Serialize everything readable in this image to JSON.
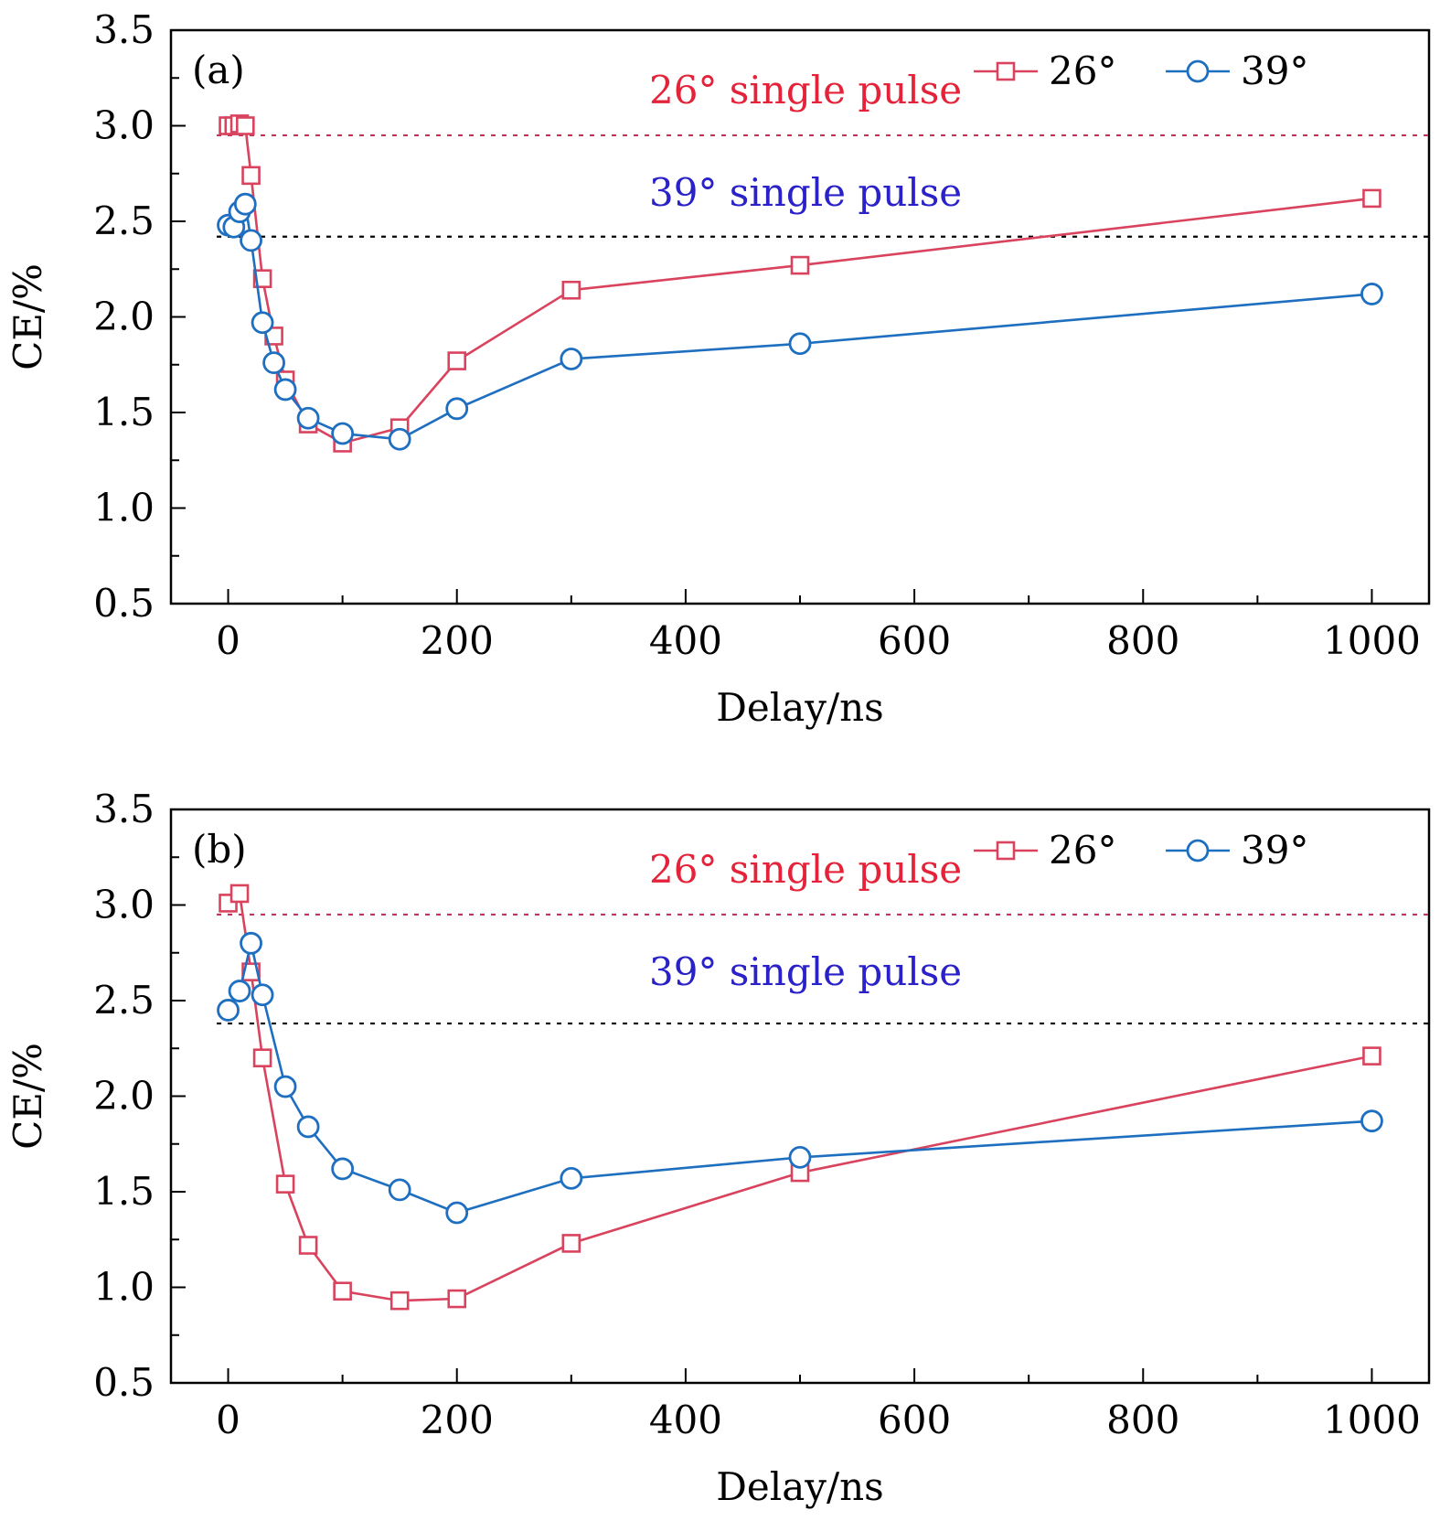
{
  "colors": {
    "series_26": "#d9435e",
    "series_39": "#1f6fc0",
    "ann_26": "#e4233a",
    "ann_39": "#2a22c8",
    "ref_26_line": "#c8305a",
    "ref_39_line": "#000000"
  },
  "chart_data": [
    {
      "type": "line",
      "panel_label": "(a)",
      "xlabel": "Delay/ns",
      "ylabel": "CE/%",
      "xlim": [
        -50,
        1050
      ],
      "ylim": [
        0.5,
        3.5
      ],
      "x_ticks": [
        0,
        200,
        400,
        600,
        800,
        1000
      ],
      "y_ticks": [
        0.5,
        1.0,
        1.5,
        2.0,
        2.5,
        3.0,
        3.5
      ],
      "legend_position": "top-right",
      "grid": false,
      "series": [
        {
          "name": "26°",
          "marker": "square",
          "x": [
            0,
            5,
            10,
            15,
            20,
            30,
            40,
            50,
            70,
            100,
            150,
            200,
            300,
            500,
            1000
          ],
          "y": [
            3.0,
            3.0,
            3.01,
            3.0,
            2.74,
            2.2,
            1.9,
            1.67,
            1.44,
            1.34,
            1.42,
            1.77,
            2.14,
            2.27,
            2.62
          ]
        },
        {
          "name": "39°",
          "marker": "circle",
          "x": [
            0,
            5,
            10,
            15,
            20,
            30,
            40,
            50,
            70,
            100,
            150,
            200,
            300,
            500,
            1000
          ],
          "y": [
            2.48,
            2.47,
            2.55,
            2.59,
            2.4,
            1.97,
            1.76,
            1.62,
            1.47,
            1.39,
            1.36,
            1.52,
            1.78,
            1.86,
            2.12
          ]
        }
      ],
      "reference_lines": [
        {
          "label": "26° single pulse",
          "y": 2.95
        },
        {
          "label": "39° single pulse",
          "y": 2.42
        }
      ]
    },
    {
      "type": "line",
      "panel_label": "(b)",
      "xlabel": "Delay/ns",
      "ylabel": "CE/%",
      "xlim": [
        -50,
        1050
      ],
      "ylim": [
        0.5,
        3.5
      ],
      "x_ticks": [
        0,
        200,
        400,
        600,
        800,
        1000
      ],
      "y_ticks": [
        0.5,
        1.0,
        1.5,
        2.0,
        2.5,
        3.0,
        3.5
      ],
      "legend_position": "top-right",
      "grid": false,
      "series": [
        {
          "name": "26°",
          "marker": "square",
          "x": [
            0,
            10,
            20,
            30,
            50,
            70,
            100,
            150,
            200,
            300,
            500,
            1000
          ],
          "y": [
            3.01,
            3.06,
            2.65,
            2.2,
            1.54,
            1.22,
            0.98,
            0.93,
            0.94,
            1.23,
            1.6,
            2.21
          ]
        },
        {
          "name": "39°",
          "marker": "circle",
          "x": [
            0,
            10,
            20,
            30,
            50,
            70,
            100,
            150,
            200,
            300,
            500,
            1000
          ],
          "y": [
            2.45,
            2.55,
            2.8,
            2.53,
            2.05,
            1.84,
            1.62,
            1.51,
            1.39,
            1.57,
            1.68,
            1.87
          ]
        }
      ],
      "reference_lines": [
        {
          "label": "26° single pulse",
          "y": 2.95
        },
        {
          "label": "39° single pulse",
          "y": 2.38
        }
      ]
    }
  ]
}
